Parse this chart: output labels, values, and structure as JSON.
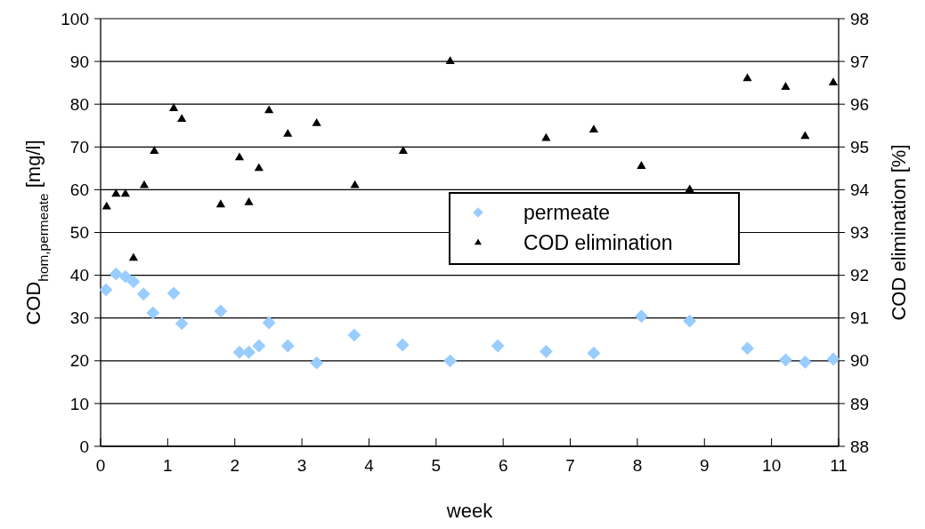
{
  "chart_data": {
    "type": "scatter",
    "xlabel": "week",
    "ylabel": "COD$_{hom,permeate}$ [mg/l]",
    "y2label": "COD elimination [%]",
    "xlim": [
      0,
      11
    ],
    "xticks": [
      0,
      1,
      2,
      3,
      4,
      5,
      6,
      7,
      8,
      9,
      10,
      11
    ],
    "ylim": [
      0,
      100
    ],
    "yticks": [
      0,
      10,
      20,
      30,
      40,
      50,
      60,
      70,
      80,
      90,
      100
    ],
    "y2lim": [
      88,
      98
    ],
    "y2ticks": [
      88,
      89,
      90,
      91,
      92,
      93,
      94,
      95,
      96,
      97,
      98
    ],
    "grid": "y",
    "legend": "center",
    "series": [
      {
        "name": "permeate",
        "color": "#99ccff",
        "marker": "diamond",
        "x": [
          0.08,
          0.23,
          0.37,
          0.49,
          0.64,
          0.78,
          1.09,
          1.21,
          1.79,
          2.07,
          2.21,
          2.36,
          2.51,
          2.79,
          3.22,
          3.78,
          4.5,
          5.21,
          5.92,
          6.64,
          7.35,
          8.06,
          8.78,
          9.64,
          10.21,
          10.5,
          10.92
        ],
        "values": [
          36.6,
          40.3,
          39.7,
          38.5,
          35.6,
          31.2,
          35.8,
          28.7,
          31.6,
          22.0,
          22.0,
          23.5,
          28.9,
          23.5,
          19.5,
          26.0,
          23.7,
          20.0,
          23.5,
          22.2,
          21.8,
          30.4,
          29.3,
          22.9,
          20.2,
          19.7,
          20.4
        ]
      },
      {
        "name": "COD elimination",
        "color": "#000000",
        "marker": "triangle",
        "axis": "y2",
        "x": [
          0.09,
          0.23,
          0.37,
          0.49,
          0.65,
          0.8,
          1.09,
          1.21,
          1.79,
          2.07,
          2.21,
          2.36,
          2.51,
          2.79,
          3.22,
          3.79,
          4.51,
          5.21,
          6.64,
          7.35,
          8.06,
          8.78,
          9.64,
          10.21,
          10.5,
          10.92
        ],
        "values": [
          93.6,
          93.9,
          93.9,
          92.4,
          94.1,
          94.9,
          95.9,
          95.65,
          93.65,
          94.75,
          93.7,
          94.5,
          95.85,
          95.3,
          95.55,
          94.1,
          94.9,
          97.0,
          95.2,
          95.4,
          94.55,
          94.0,
          96.6,
          96.4,
          95.25,
          96.5
        ]
      }
    ]
  }
}
